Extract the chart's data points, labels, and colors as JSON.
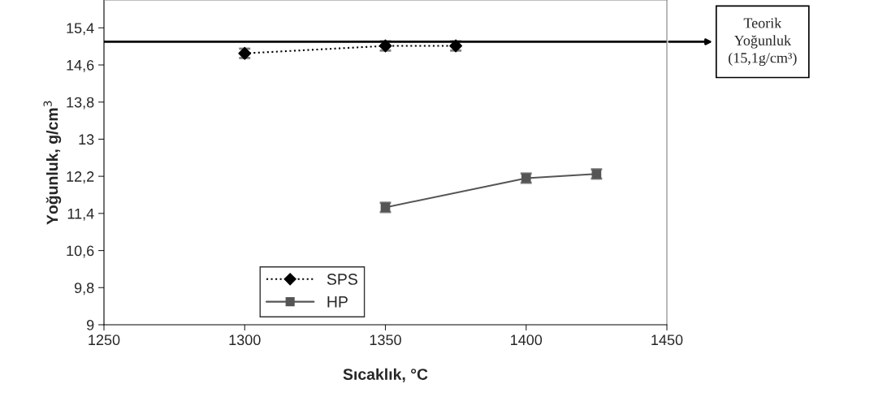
{
  "chart_data": {
    "type": "line",
    "xlabel": "Sıcaklık, °C",
    "ylabel": "Yoğunluk, g/cm$^{3}$",
    "xlim": [
      1250,
      1450
    ],
    "xticks": [
      1250,
      1300,
      1350,
      1400,
      1450
    ],
    "ylim": [
      9,
      16
    ],
    "yticks": [
      9,
      {
        "value": 9.8,
        "label": "9,8"
      },
      {
        "value": 10.6,
        "label": "10,6"
      },
      {
        "value": 11.4,
        "label": "11,4"
      },
      {
        "value": 12.2,
        "label": "12,2"
      },
      13,
      {
        "value": 13.8,
        "label": "13,8"
      },
      {
        "value": 14.6,
        "label": "14,6"
      },
      {
        "value": 15.4,
        "label": "15,4"
      }
    ],
    "series": [
      {
        "name": "SPS",
        "color": "#000000",
        "x": [
          1300,
          1350,
          1375
        ],
        "values": [
          14.85,
          15.01,
          15.01
        ],
        "errors": [
          0.1,
          0.1,
          0.1
        ],
        "marker": "diamond",
        "line_style": "dotted"
      },
      {
        "name": "HP",
        "color": "#555555",
        "x": [
          1350,
          1400,
          1425
        ],
        "values": [
          11.53,
          12.16,
          12.25
        ],
        "errors": [
          0.1,
          0.1,
          0.1
        ],
        "marker": "square",
        "line_style": "solid"
      }
    ],
    "ref_lines": [
      {
        "axis": "y",
        "value": 15.1,
        "label": "Teorik\nYoğunluk\n(15,1g/cm³)",
        "color": "#000000"
      }
    ],
    "legend": "bottom",
    "grid": false
  }
}
